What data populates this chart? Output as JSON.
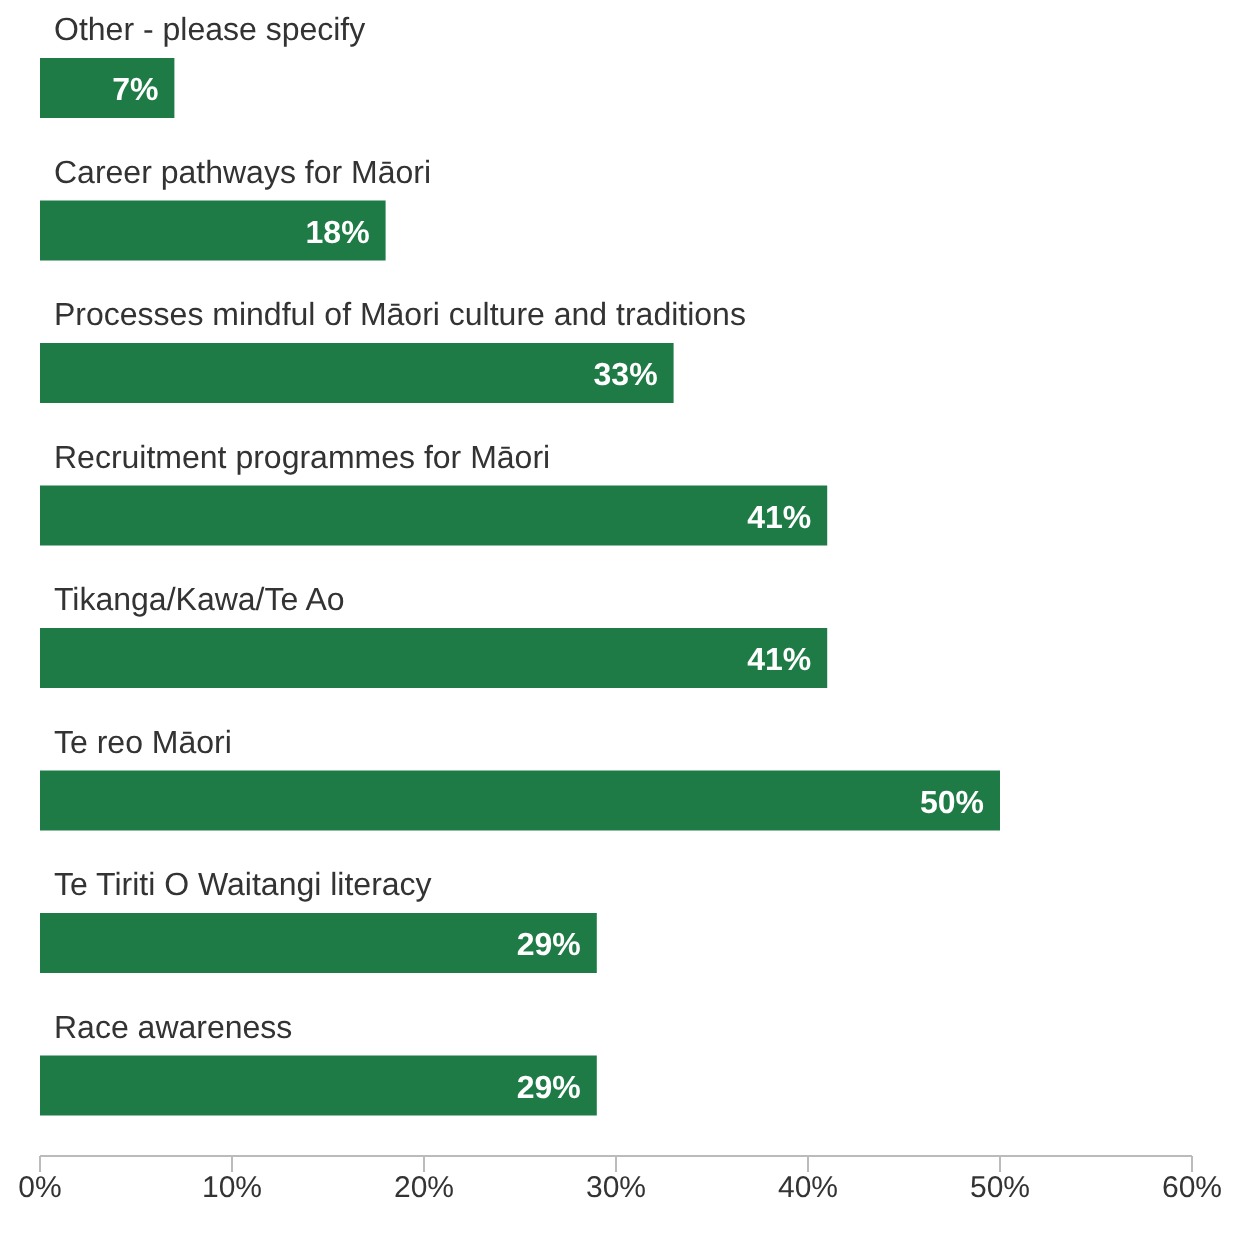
{
  "chart_data": {
    "type": "bar",
    "orientation": "horizontal",
    "categories": [
      "Other - please specify",
      "Career pathways for Māori",
      "Processes mindful of Māori culture and traditions",
      "Recruitment programmes for Māori",
      "Tikanga/Kawa/Te Ao",
      "Te reo Māori",
      "Te Tiriti O Waitangi literacy",
      "Race awareness"
    ],
    "values": [
      7,
      18,
      33,
      41,
      41,
      50,
      29,
      29
    ],
    "value_labels": [
      "7%",
      "18%",
      "33%",
      "41%",
      "41%",
      "50%",
      "29%",
      "29%"
    ],
    "color": "#1e7b46",
    "xlim": [
      0,
      60
    ],
    "xticks": [
      {
        "value": 0,
        "label": "0%"
      },
      {
        "value": 10,
        "label": "10%"
      },
      {
        "value": 20,
        "label": "20%"
      },
      {
        "value": 30,
        "label": "30%"
      },
      {
        "value": 40,
        "label": "40%"
      },
      {
        "value": 50,
        "label": "50%"
      },
      {
        "value": 60,
        "label": "60%"
      }
    ],
    "grid": false
  }
}
